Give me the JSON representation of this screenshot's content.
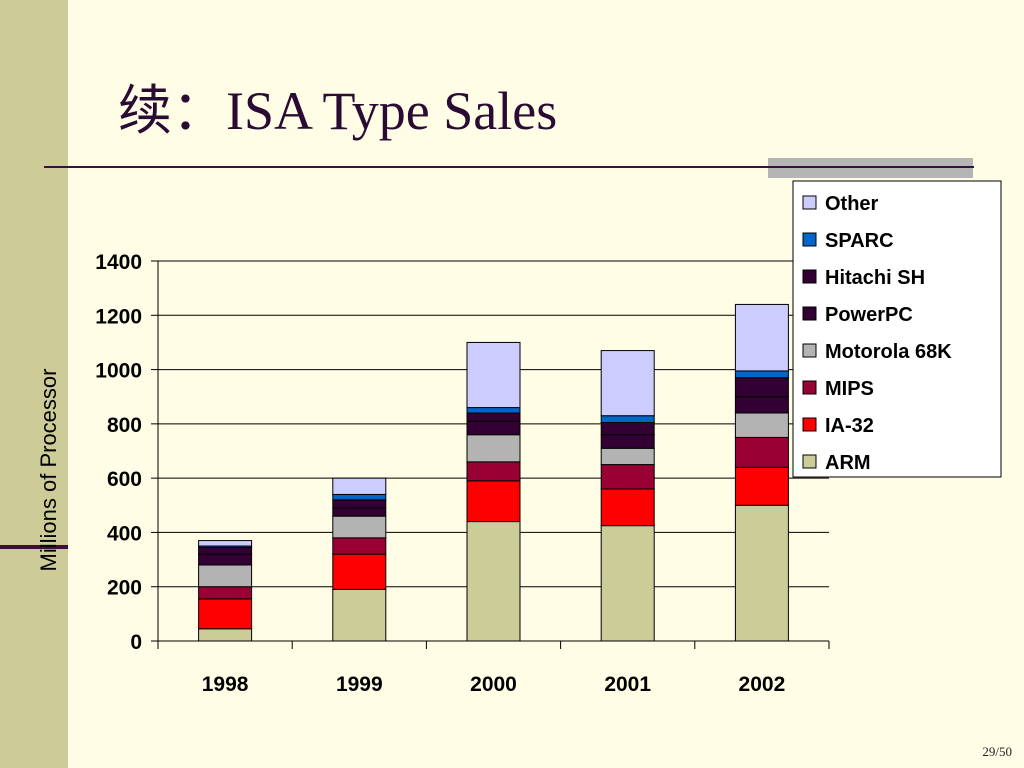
{
  "slide": {
    "title": "续：ISA Type Sales",
    "page_number": "29/50"
  },
  "chart_data": {
    "type": "bar",
    "stacked": true,
    "categories": [
      "1998",
      "1999",
      "2000",
      "2001",
      "2002"
    ],
    "ylabel": "Millions of Processor",
    "xlabel": "",
    "ylim": [
      0,
      1400
    ],
    "yticks": [
      0,
      200,
      400,
      600,
      800,
      1000,
      1200,
      1400
    ],
    "grid": "horizontal",
    "legend": "top-right",
    "series": [
      {
        "name": "ARM",
        "color": "#cccc99",
        "values": [
          45,
          190,
          440,
          425,
          500
        ]
      },
      {
        "name": "IA-32",
        "color": "#ff0000",
        "values": [
          110,
          130,
          150,
          135,
          140
        ]
      },
      {
        "name": "MIPS",
        "color": "#990033",
        "values": [
          45,
          60,
          70,
          90,
          110
        ]
      },
      {
        "name": "Motorola 68K",
        "color": "#b3b3b3",
        "values": [
          80,
          80,
          100,
          60,
          90
        ]
      },
      {
        "name": "PowerPC",
        "color": "#330033",
        "values": [
          40,
          30,
          50,
          50,
          60
        ]
      },
      {
        "name": "Hitachi SH",
        "color": "#330033",
        "values": [
          25,
          30,
          30,
          45,
          70
        ]
      },
      {
        "name": "SPARC",
        "color": "#0066cc",
        "values": [
          5,
          20,
          20,
          25,
          25
        ]
      },
      {
        "name": "Other",
        "color": "#ccccff",
        "values": [
          20,
          60,
          240,
          240,
          245
        ]
      }
    ]
  }
}
